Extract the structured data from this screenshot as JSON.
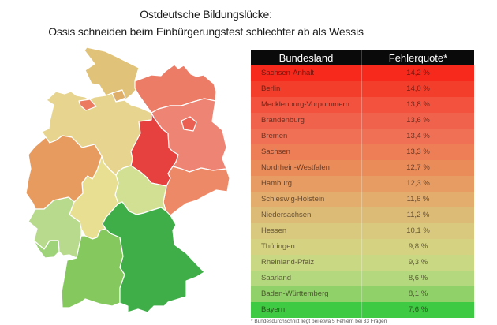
{
  "title": {
    "line1": "Ostdeutsche Bildungslücke:",
    "line2": "Ossis schneiden beim Einbürgerungstest schlechter ab als Wessis"
  },
  "table": {
    "headers": {
      "state": "Bundesland",
      "rate": "Fehlerquote*"
    },
    "rows": [
      {
        "state": "Sachsen-Anhalt",
        "rate": "14,2 %",
        "color": "#f7291d"
      },
      {
        "state": "Berlin",
        "rate": "14,0 %",
        "color": "#f43e2c"
      },
      {
        "state": "Mecklenburg-Vorpommern",
        "rate": "13,8 %",
        "color": "#f2523e"
      },
      {
        "state": "Brandenburg",
        "rate": "13,6 %",
        "color": "#f0624b"
      },
      {
        "state": "Bremen",
        "rate": "13,4 %",
        "color": "#ef7054"
      },
      {
        "state": "Sachsen",
        "rate": "13,3 %",
        "color": "#ee7e55"
      },
      {
        "state": "Nordrhein-Westfalen",
        "rate": "12,7 %",
        "color": "#ea8c5a"
      },
      {
        "state": "Hamburg",
        "rate": "12,3 %",
        "color": "#e69c62"
      },
      {
        "state": "Schleswig-Holstein",
        "rate": "11,6 %",
        "color": "#e2ad6d"
      },
      {
        "state": "Niedersachsen",
        "rate": "11,2 %",
        "color": "#dcbb76"
      },
      {
        "state": "Hessen",
        "rate": "10,1 %",
        "color": "#d9c97e"
      },
      {
        "state": "Thüringen",
        "rate": "9,8 %",
        "color": "#d5d381"
      },
      {
        "state": "Rheinland-Pfalz",
        "rate": "9,3 %",
        "color": "#c9d883"
      },
      {
        "state": "Saarland",
        "rate": "8,6 %",
        "color": "#b3d87e"
      },
      {
        "state": "Baden-Württemberg",
        "rate": "8,1 %",
        "color": "#90d169"
      },
      {
        "state": "Bayern",
        "rate": "7,6 %",
        "color": "#3eca43"
      }
    ],
    "footnote": "* Bundesdurchschnitt liegt bei etwa 5 Fehlern bei 33 Fragen"
  },
  "map": {
    "border_color": "#ffffff",
    "states": [
      {
        "id": "schleswig-holstein",
        "name": "Schleswig-Holstein",
        "color": "#e0c278"
      },
      {
        "id": "niedersachsen",
        "name": "Niedersachsen",
        "color": "#e6d48f"
      },
      {
        "id": "mecklenburg-vorpommern",
        "name": "Mecklenburg-Vorpommern",
        "color": "#ed7c66"
      },
      {
        "id": "brandenburg",
        "name": "Brandenburg",
        "color": "#ee8473"
      },
      {
        "id": "sachsen-anhalt",
        "name": "Sachsen-Anhalt",
        "color": "#e6413f"
      },
      {
        "id": "sachsen",
        "name": "Sachsen",
        "color": "#ee8968"
      },
      {
        "id": "thueringen",
        "name": "Thüringen",
        "color": "#d2e093"
      },
      {
        "id": "hessen",
        "name": "Hessen",
        "color": "#e8df92"
      },
      {
        "id": "nordrhein-westfalen",
        "name": "Nordrhein-Westfalen",
        "color": "#e89b5f"
      },
      {
        "id": "rheinland-pfalz",
        "name": "Rheinland-Pfalz",
        "color": "#b7da8d"
      },
      {
        "id": "saarland",
        "name": "Saarland",
        "color": "#9fd37a"
      },
      {
        "id": "baden-wuerttemberg",
        "name": "Baden-Württemberg",
        "color": "#85c95e"
      },
      {
        "id": "bayern",
        "name": "Bayern",
        "color": "#3fae49"
      },
      {
        "id": "hamburg",
        "name": "Hamburg",
        "color": "#dfae69"
      },
      {
        "id": "bremen",
        "name": "Bremen",
        "color": "#ec7a60"
      },
      {
        "id": "berlin",
        "name": "Berlin",
        "color": "#ea5f52"
      }
    ]
  },
  "chart_data": {
    "type": "table",
    "subtype": "choropleth-map-with-ranked-table",
    "title": "Ostdeutsche Bildungslücke: Ossis schneiden beim Einbürgerungstest schlechter ab als Wessis",
    "columns": [
      "Bundesland",
      "Fehlerquote*"
    ],
    "categories": [
      "Sachsen-Anhalt",
      "Berlin",
      "Mecklenburg-Vorpommern",
      "Brandenburg",
      "Bremen",
      "Sachsen",
      "Nordrhein-Westfalen",
      "Hamburg",
      "Schleswig-Holstein",
      "Niedersachsen",
      "Hessen",
      "Thüringen",
      "Rheinland-Pfalz",
      "Saarland",
      "Baden-Württemberg",
      "Bayern"
    ],
    "values": [
      14.2,
      14.0,
      13.8,
      13.6,
      13.4,
      13.3,
      12.7,
      12.3,
      11.6,
      11.2,
      10.1,
      9.8,
      9.3,
      8.6,
      8.1,
      7.6
    ],
    "unit": "%",
    "value_range": [
      7.6,
      14.2
    ],
    "color_scale": "red = high error rate, green = low error rate",
    "legend_position": "none"
  }
}
